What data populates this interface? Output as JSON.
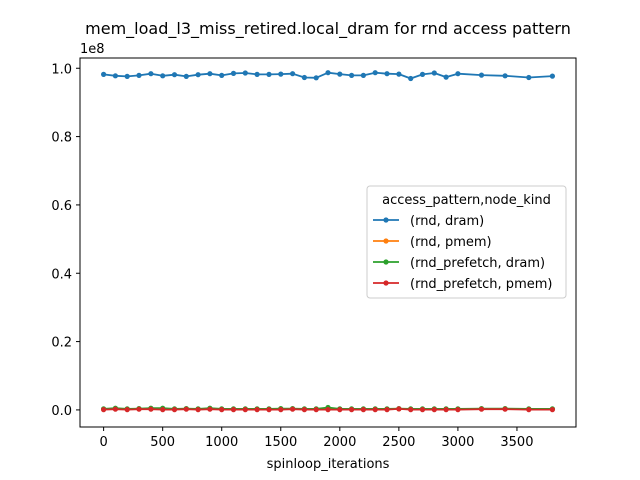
{
  "chart_data": {
    "type": "line",
    "title": "mem_load_l3_miss_retired.local_dram for rnd access pattern",
    "xlabel": "spinloop_iterations",
    "ylabel": "",
    "y_offset_label": "1e8",
    "xlim": [
      -200,
      4000
    ],
    "ylim": [
      -0.05,
      1.03
    ],
    "x_ticks": [
      0,
      500,
      1000,
      1500,
      2000,
      2500,
      3000,
      3500
    ],
    "y_ticks": [
      0.0,
      0.2,
      0.4,
      0.6,
      0.8,
      1.0
    ],
    "y_tick_labels": [
      "0.0",
      "0.2",
      "0.4",
      "0.6",
      "0.8",
      "1.0"
    ],
    "grid": false,
    "legend": {
      "title": "access_pattern,node_kind",
      "placement": "center-right"
    },
    "x": [
      0,
      100,
      200,
      300,
      400,
      500,
      600,
      700,
      800,
      900,
      1000,
      1100,
      1200,
      1300,
      1400,
      1500,
      1600,
      1700,
      1800,
      1900,
      2000,
      2100,
      2200,
      2300,
      2400,
      2500,
      2600,
      2700,
      2800,
      2900,
      3000,
      3200,
      3400,
      3600,
      3800
    ],
    "series": [
      {
        "name": "(rnd, dram)",
        "color": "#1f77b4",
        "values": [
          0.982,
          0.978,
          0.976,
          0.979,
          0.984,
          0.978,
          0.981,
          0.976,
          0.981,
          0.984,
          0.979,
          0.985,
          0.986,
          0.982,
          0.982,
          0.983,
          0.984,
          0.973,
          0.972,
          0.987,
          0.983,
          0.979,
          0.979,
          0.987,
          0.984,
          0.983,
          0.97,
          0.982,
          0.986,
          0.974,
          0.984,
          0.98,
          0.978,
          0.973,
          0.977
        ]
      },
      {
        "name": "(rnd, pmem)",
        "color": "#ff7f0e",
        "values": [
          0.002,
          0.004,
          0.002,
          0.003,
          0.003,
          0.003,
          0.002,
          0.003,
          0.002,
          0.004,
          0.002,
          0.002,
          0.002,
          0.002,
          0.002,
          0.003,
          0.003,
          0.002,
          0.002,
          0.004,
          0.002,
          0.002,
          0.002,
          0.002,
          0.002,
          0.003,
          0.002,
          0.002,
          0.002,
          0.002,
          0.002,
          0.003,
          0.003,
          0.002,
          0.002
        ]
      },
      {
        "name": "(rnd_prefetch, dram)",
        "color": "#2ca02c",
        "values": [
          0.003,
          0.005,
          0.003,
          0.004,
          0.005,
          0.005,
          0.003,
          0.004,
          0.003,
          0.005,
          0.003,
          0.003,
          0.003,
          0.003,
          0.003,
          0.004,
          0.004,
          0.003,
          0.003,
          0.007,
          0.003,
          0.003,
          0.003,
          0.003,
          0.003,
          0.004,
          0.003,
          0.003,
          0.003,
          0.003,
          0.003,
          0.004,
          0.004,
          0.003,
          0.003
        ]
      },
      {
        "name": "(rnd_prefetch, pmem)",
        "color": "#d62728",
        "values": [
          0.001,
          0.002,
          0.001,
          0.002,
          0.002,
          0.001,
          0.001,
          0.002,
          0.001,
          0.002,
          0.001,
          0.001,
          0.001,
          0.001,
          0.001,
          0.001,
          0.002,
          0.001,
          0.001,
          0.001,
          0.001,
          0.001,
          0.001,
          0.001,
          0.001,
          0.003,
          0.001,
          0.001,
          0.001,
          0.001,
          0.001,
          0.002,
          0.002,
          0.001,
          0.001
        ]
      }
    ]
  }
}
